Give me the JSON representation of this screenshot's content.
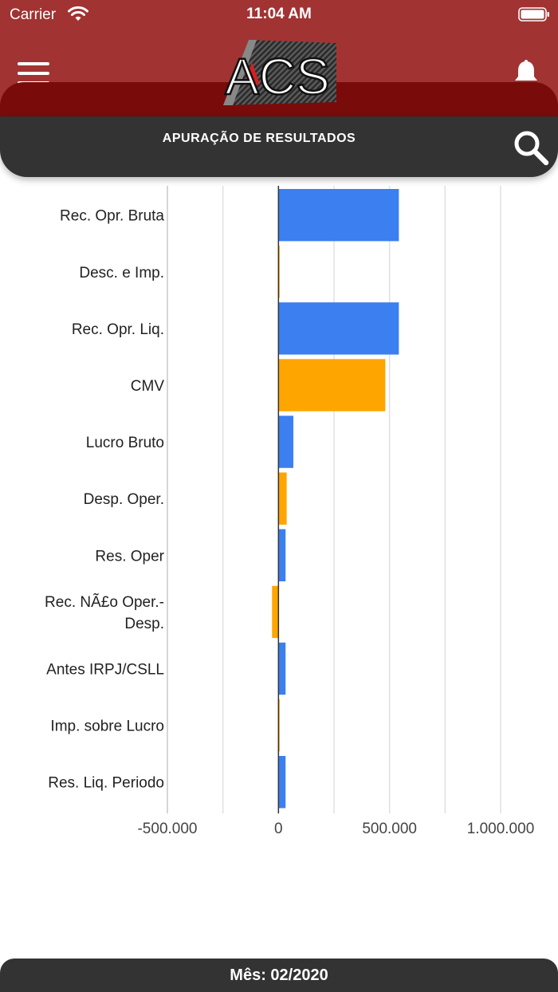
{
  "status_bar": {
    "carrier": "Carrier",
    "time": "11:04 AM",
    "icons": [
      "wifi-icon",
      "battery-icon"
    ]
  },
  "header": {
    "logo_text": "ACS",
    "menu_icon": "hamburger-menu-icon",
    "notification_icon": "bell-icon",
    "colors": {
      "primary": "#a23333",
      "dark": "#7a0b0b",
      "bar": "#333333"
    }
  },
  "title_bar": {
    "title": "APURAÇÃO DE RESULTADOS",
    "search_icon": "search-icon"
  },
  "chart_data": {
    "type": "bar",
    "orientation": "horizontal",
    "categories": [
      "Rec. Opr. Bruta",
      "Desc. e Imp.",
      "Rec. Opr. Liq.",
      "CMV",
      "Lucro Bruto",
      "Desp. Oper.",
      "Res. Oper",
      "Rec. NÃ£o Oper.-Desp.",
      "Antes IRPJ/CSLL",
      "Imp. sobre Lucro",
      "Res. Liq. Periodo"
    ],
    "values": [
      542000,
      3000,
      542000,
      481000,
      67000,
      37000,
      32000,
      -29000,
      32000,
      2000,
      32000
    ],
    "colors": [
      "#3b7ff0",
      "#ffa500",
      "#3b7ff0",
      "#ffa500",
      "#3b7ff0",
      "#ffa500",
      "#3b7ff0",
      "#ffa500",
      "#3b7ff0",
      "#ffa500",
      "#3b7ff0"
    ],
    "xlim": [
      -500000,
      1000000
    ],
    "xticks": [
      -500000,
      -250000,
      0,
      250000,
      500000,
      750000,
      1000000
    ],
    "xtick_labels": [
      "-500.000",
      "",
      "0",
      "",
      "500.000",
      "",
      "1.000.000"
    ],
    "grid": true,
    "legend": "none"
  },
  "footer": {
    "label": "Mês: 02/2020"
  }
}
